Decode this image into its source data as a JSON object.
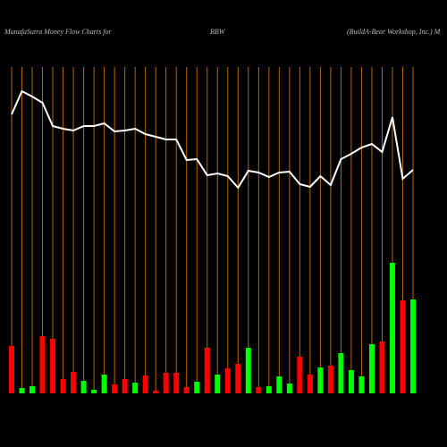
{
  "chart_data": {
    "type": "bar",
    "title": "MunafaSutra  Money Flow  Charts for",
    "symbol": "BBW",
    "company": "(BuildA-Bear Workshop, Inc.) M",
    "values": [
      53,
      6,
      8,
      64,
      61,
      16,
      24,
      14,
      4,
      21,
      10,
      16,
      12,
      20,
      3,
      23,
      23,
      7,
      13,
      51,
      21,
      28,
      33,
      51,
      7,
      8,
      19,
      11,
      41,
      21,
      29,
      31,
      45,
      26,
      19,
      55,
      58,
      146,
      104,
      105
    ],
    "colors": [
      "#ff0000",
      "#00ff00",
      "#00ff00",
      "#ff0000",
      "#ff0000",
      "#ff0000",
      "#ff0000",
      "#00ff00",
      "#00ff00",
      "#00ff00",
      "#ff0000",
      "#ff0000",
      "#00ff00",
      "#ff0000",
      "#ff0000",
      "#ff0000",
      "#ff0000",
      "#ff0000",
      "#00ff00",
      "#ff0000",
      "#00ff00",
      "#ff0000",
      "#ff0000",
      "#00ff00",
      "#ff0000",
      "#00ff00",
      "#00ff00",
      "#00ff00",
      "#ff0000",
      "#ff0000",
      "#00ff00",
      "#ff0000",
      "#00ff00",
      "#00ff00",
      "#00ff00",
      "#00ff00",
      "#ff0000",
      "#00ff00",
      "#ff0000",
      "#00ff00"
    ],
    "line": {
      "color": "#ffffff",
      "values": [
        312,
        338,
        332,
        325,
        299,
        296,
        294,
        299,
        299,
        302,
        293,
        294,
        296,
        290,
        287,
        284,
        284,
        261,
        262,
        244,
        246,
        243,
        230,
        249,
        247,
        242,
        247,
        248,
        234,
        231,
        243,
        233,
        262,
        268,
        275,
        279,
        270,
        309,
        240,
        250
      ]
    },
    "ylim": [
      0,
      440
    ],
    "grid": true,
    "grid_color": "#b8660b"
  }
}
